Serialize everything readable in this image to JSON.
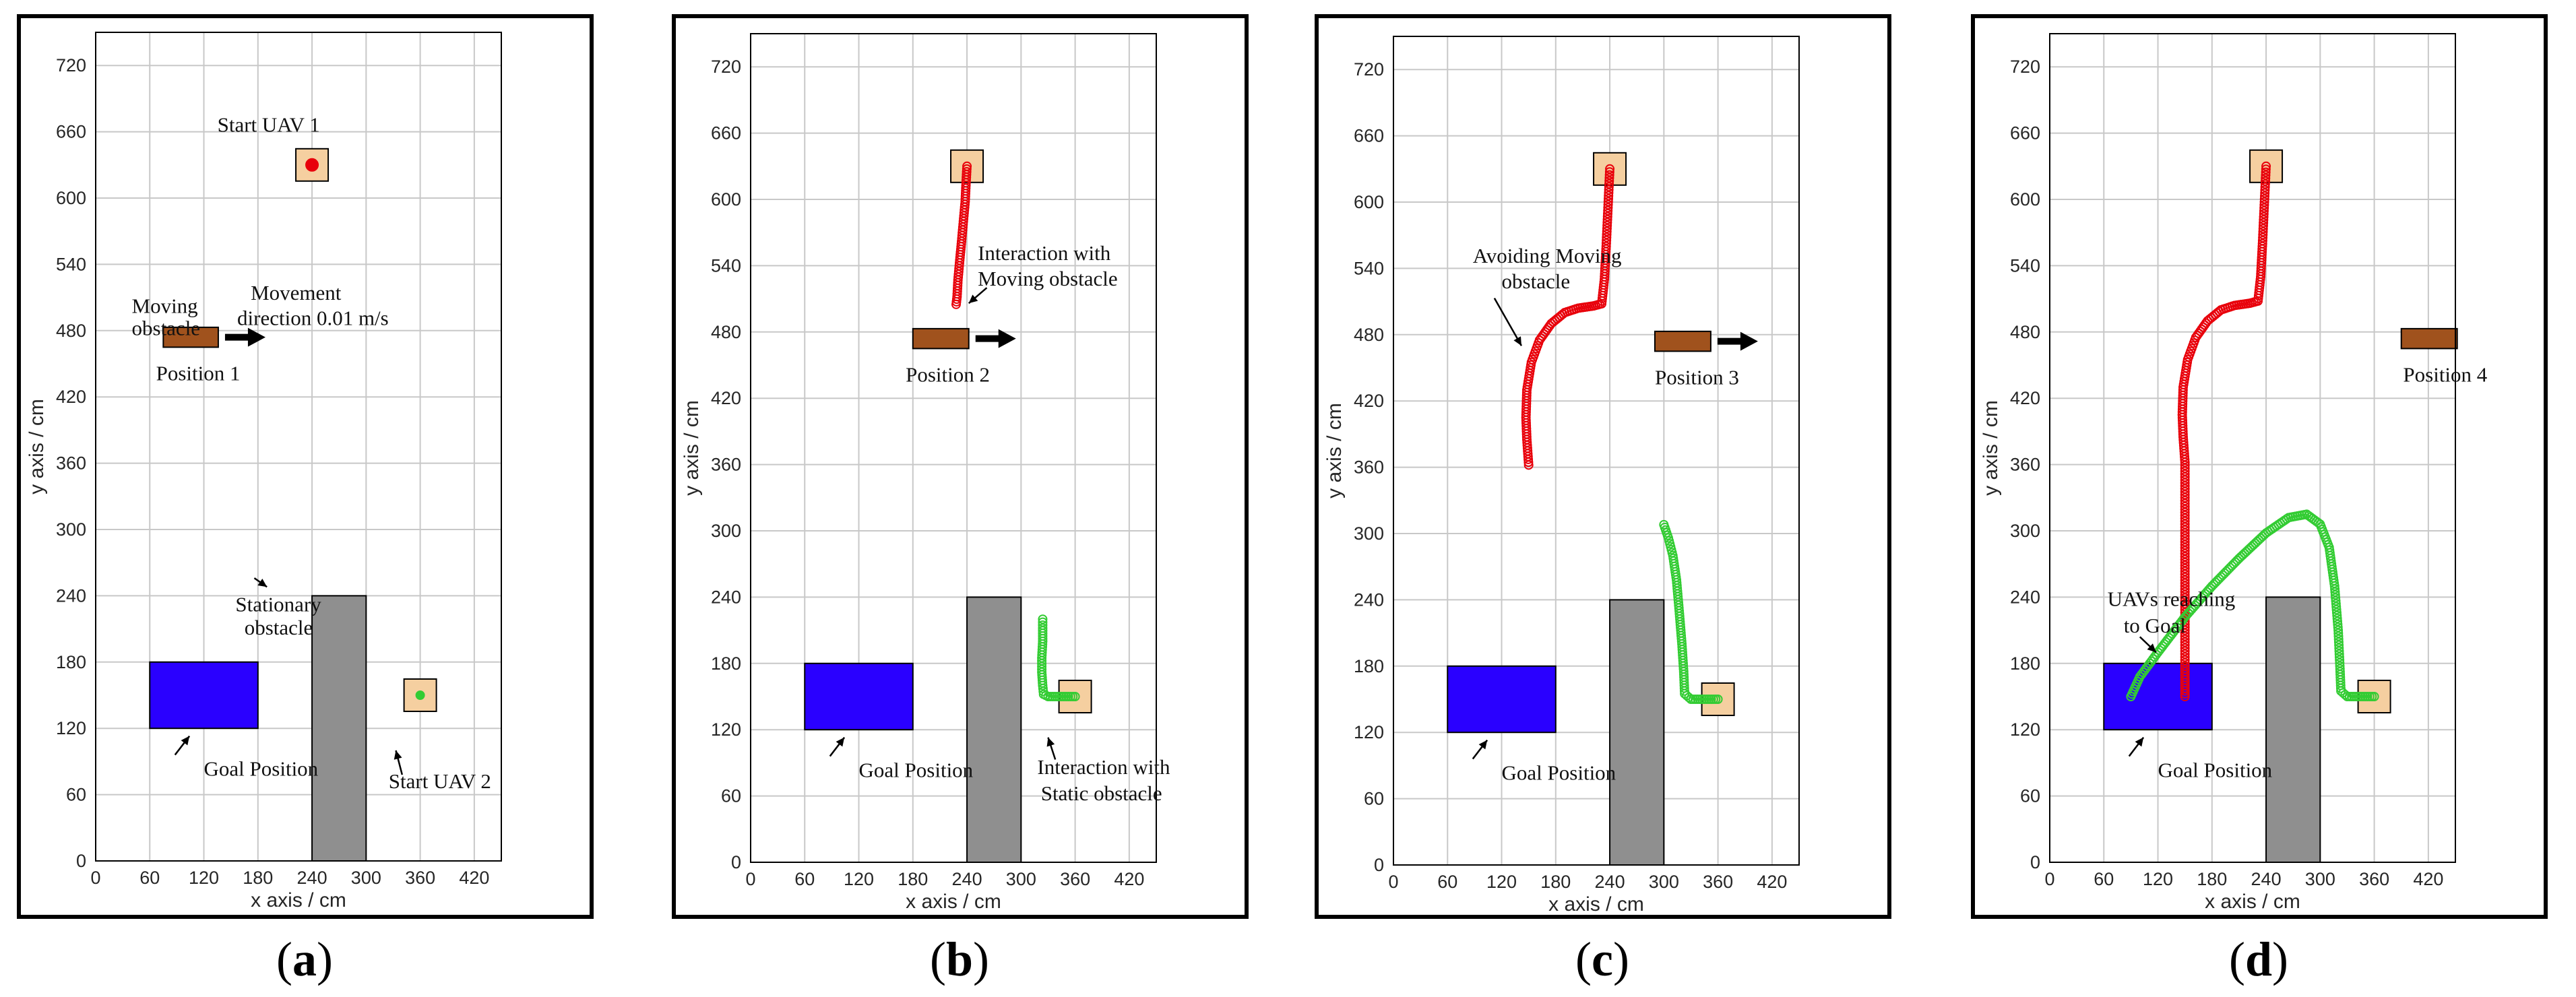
{
  "figure": {
    "panels": [
      {
        "id": "a",
        "label_open": "(",
        "label_letter": "a",
        "label_close": ")"
      },
      {
        "id": "b",
        "label_open": "(",
        "label_letter": "b",
        "label_close": ")"
      },
      {
        "id": "c",
        "label_open": "(",
        "label_letter": "c",
        "label_close": ")"
      },
      {
        "id": "d",
        "label_open": "(",
        "label_letter": "d",
        "label_close": ")"
      }
    ]
  },
  "chart_data": [
    {
      "type": "scatter",
      "panel": "a",
      "xlabel": "x axis / cm",
      "ylabel": "y axis / cm",
      "xlim": [
        0,
        450
      ],
      "ylim": [
        0,
        750
      ],
      "xticks": [
        0,
        60,
        120,
        180,
        240,
        300,
        360,
        420
      ],
      "yticks": [
        0,
        60,
        120,
        180,
        240,
        300,
        360,
        420,
        480,
        540,
        600,
        660,
        720
      ],
      "grid": true,
      "goal_region": {
        "x": [
          60,
          180
        ],
        "y": [
          120,
          180
        ]
      },
      "stationary_obstacle": {
        "x": [
          240,
          300
        ],
        "y": [
          0,
          240
        ]
      },
      "moving_obstacle": {
        "x": [
          75,
          136
        ],
        "y": [
          465,
          483
        ]
      },
      "start_boxes": [
        {
          "center": [
            240,
            630
          ]
        },
        {
          "center": [
            360,
            150
          ]
        }
      ],
      "series": [
        {
          "name": "UAV 1 start",
          "color": "#e8000b",
          "points": [
            [
              240,
              630
            ]
          ]
        },
        {
          "name": "UAV 2 start",
          "color": "#33cc33",
          "points": [
            [
              360,
              150
            ]
          ]
        }
      ],
      "annotations": [
        {
          "text": "Start UAV 1",
          "at": [
            135,
            660
          ]
        },
        {
          "text": "Moving",
          "at": [
            40,
            496
          ]
        },
        {
          "text": "obstacle",
          "at": [
            40,
            476
          ]
        },
        {
          "text": "Movement",
          "at": [
            172,
            508
          ]
        },
        {
          "text": "direction 0.01 m/s",
          "at": [
            157,
            485
          ]
        },
        {
          "text": "Position 1",
          "at": [
            67,
            435
          ]
        },
        {
          "text": "Stationary",
          "at": [
            155,
            226
          ]
        },
        {
          "text": "obstacle",
          "at": [
            165,
            205
          ]
        },
        {
          "text": "Goal Position",
          "at": [
            120,
            77
          ]
        },
        {
          "text": "Start UAV 2",
          "at": [
            325,
            66
          ]
        }
      ]
    },
    {
      "type": "scatter",
      "panel": "b",
      "xlabel": "x axis / cm",
      "ylabel": "y axis / cm",
      "xlim": [
        0,
        450
      ],
      "ylim": [
        0,
        750
      ],
      "xticks": [
        0,
        60,
        120,
        180,
        240,
        300,
        360,
        420
      ],
      "yticks": [
        0,
        60,
        120,
        180,
        240,
        300,
        360,
        420,
        480,
        540,
        600,
        660,
        720
      ],
      "grid": true,
      "goal_region": {
        "x": [
          60,
          180
        ],
        "y": [
          120,
          180
        ]
      },
      "stationary_obstacle": {
        "x": [
          240,
          300
        ],
        "y": [
          0,
          240
        ]
      },
      "moving_obstacle": {
        "x": [
          180,
          242
        ],
        "y": [
          465,
          483
        ]
      },
      "start_boxes": [
        {
          "center": [
            240,
            630
          ]
        },
        {
          "center": [
            360,
            150
          ]
        }
      ],
      "series": [
        {
          "name": "UAV 1 path",
          "color": "#e8000b",
          "points": [
            [
              240,
              630
            ],
            [
              239,
              615
            ],
            [
              238,
              598
            ],
            [
              236,
              580
            ],
            [
              234,
              562
            ],
            [
              232,
              545
            ],
            [
              230,
              527
            ],
            [
              229,
              512
            ],
            [
              228,
              505
            ]
          ]
        },
        {
          "name": "UAV 2 path",
          "color": "#33cc33",
          "points": [
            [
              360,
              150
            ],
            [
              350,
              150
            ],
            [
              340,
              150
            ],
            [
              330,
              150
            ],
            [
              325,
              152
            ],
            [
              324,
              160
            ],
            [
              323,
              172
            ],
            [
              323,
              185
            ],
            [
              324,
              200
            ],
            [
              324,
              212
            ],
            [
              324,
              220
            ]
          ]
        }
      ],
      "annotations": [
        {
          "text": "Interaction with",
          "at": [
            252,
            545
          ]
        },
        {
          "text": "Moving obstacle",
          "at": [
            252,
            522
          ]
        },
        {
          "text": "Position 2",
          "at": [
            172,
            435
          ]
        },
        {
          "text": "Goal Position",
          "at": [
            120,
            77
          ]
        },
        {
          "text": "Interaction with",
          "at": [
            318,
            80
          ]
        },
        {
          "text": "Static obstacle",
          "at": [
            322,
            56
          ]
        }
      ]
    },
    {
      "type": "scatter",
      "panel": "c",
      "xlabel": "x axis / cm",
      "ylabel": "y axis / cm",
      "xlim": [
        0,
        450
      ],
      "ylim": [
        0,
        750
      ],
      "xticks": [
        0,
        60,
        120,
        180,
        240,
        300,
        360,
        420
      ],
      "yticks": [
        0,
        60,
        120,
        180,
        240,
        300,
        360,
        420,
        480,
        540,
        600,
        660,
        720
      ],
      "grid": true,
      "goal_region": {
        "x": [
          60,
          180
        ],
        "y": [
          120,
          180
        ]
      },
      "stationary_obstacle": {
        "x": [
          240,
          300
        ],
        "y": [
          0,
          240
        ]
      },
      "moving_obstacle": {
        "x": [
          290,
          352
        ],
        "y": [
          465,
          483
        ]
      },
      "start_boxes": [
        {
          "center": [
            240,
            630
          ]
        },
        {
          "center": [
            360,
            150
          ]
        }
      ],
      "series": [
        {
          "name": "UAV 1 path",
          "color": "#e8000b",
          "points": [
            [
              240,
              630
            ],
            [
              238,
              595
            ],
            [
              236,
              560
            ],
            [
              234,
              530
            ],
            [
              231,
              508
            ],
            [
              222,
              506
            ],
            [
              205,
              504
            ],
            [
              190,
              500
            ],
            [
              175,
              490
            ],
            [
              162,
              475
            ],
            [
              153,
              455
            ],
            [
              148,
              430
            ],
            [
              147,
              405
            ],
            [
              148,
              385
            ],
            [
              150,
              362
            ]
          ]
        },
        {
          "name": "UAV 2 path",
          "color": "#33cc33",
          "points": [
            [
              360,
              150
            ],
            [
              345,
              150
            ],
            [
              330,
              150
            ],
            [
              323,
              155
            ],
            [
              322,
              175
            ],
            [
              320,
              200
            ],
            [
              317,
              230
            ],
            [
              314,
              258
            ],
            [
              310,
              280
            ],
            [
              305,
              296
            ],
            [
              300,
              308
            ]
          ]
        }
      ],
      "annotations": [
        {
          "text": "Avoiding Moving",
          "at": [
            88,
            545
          ]
        },
        {
          "text": "obstacle",
          "at": [
            120,
            522
          ]
        },
        {
          "text": "Position 3",
          "at": [
            290,
            435
          ]
        },
        {
          "text": "Goal Position",
          "at": [
            120,
            77
          ]
        }
      ]
    },
    {
      "type": "scatter",
      "panel": "d",
      "xlabel": "x axis / cm",
      "ylabel": "y axis / cm",
      "xlim": [
        0,
        450
      ],
      "ylim": [
        0,
        750
      ],
      "xticks": [
        0,
        60,
        120,
        180,
        240,
        300,
        360,
        420
      ],
      "yticks": [
        0,
        60,
        120,
        180,
        240,
        300,
        360,
        420,
        480,
        540,
        600,
        660,
        720
      ],
      "grid": true,
      "goal_region": {
        "x": [
          60,
          180
        ],
        "y": [
          120,
          180
        ]
      },
      "stationary_obstacle": {
        "x": [
          240,
          300
        ],
        "y": [
          0,
          240
        ]
      },
      "moving_obstacle": {
        "x": [
          390,
          452
        ],
        "y": [
          465,
          483
        ]
      },
      "start_boxes": [
        {
          "center": [
            240,
            630
          ]
        },
        {
          "center": [
            360,
            150
          ]
        }
      ],
      "series": [
        {
          "name": "UAV 1 path",
          "color": "#e8000b",
          "points": [
            [
              240,
              630
            ],
            [
              238,
              595
            ],
            [
              236,
              560
            ],
            [
              234,
              530
            ],
            [
              231,
              508
            ],
            [
              222,
              506
            ],
            [
              205,
              504
            ],
            [
              190,
              500
            ],
            [
              175,
              490
            ],
            [
              162,
              475
            ],
            [
              153,
              455
            ],
            [
              148,
              430
            ],
            [
              147,
              405
            ],
            [
              148,
              385
            ],
            [
              150,
              362
            ],
            [
              150,
              330
            ],
            [
              150,
              290
            ],
            [
              150,
              250
            ],
            [
              150,
              210
            ],
            [
              150,
              175
            ],
            [
              150,
              150
            ]
          ]
        },
        {
          "name": "UAV 2 path",
          "color": "#33cc33",
          "points": [
            [
              360,
              150
            ],
            [
              345,
              150
            ],
            [
              330,
              150
            ],
            [
              323,
              155
            ],
            [
              322,
              175
            ],
            [
              320,
              210
            ],
            [
              316,
              250
            ],
            [
              310,
              285
            ],
            [
              300,
              306
            ],
            [
              285,
              315
            ],
            [
              265,
              312
            ],
            [
              240,
              298
            ],
            [
              210,
              275
            ],
            [
              180,
              250
            ],
            [
              150,
              222
            ],
            [
              120,
              190
            ],
            [
              100,
              168
            ],
            [
              90,
              150
            ]
          ]
        }
      ],
      "annotations": [
        {
          "text": "UAVs reaching",
          "at": [
            64,
            232
          ]
        },
        {
          "text": "to Goal",
          "at": [
            82,
            208
          ]
        },
        {
          "text": "Position 4",
          "at": [
            392,
            435
          ]
        },
        {
          "text": "Goal Position",
          "at": [
            120,
            77
          ]
        }
      ]
    }
  ]
}
